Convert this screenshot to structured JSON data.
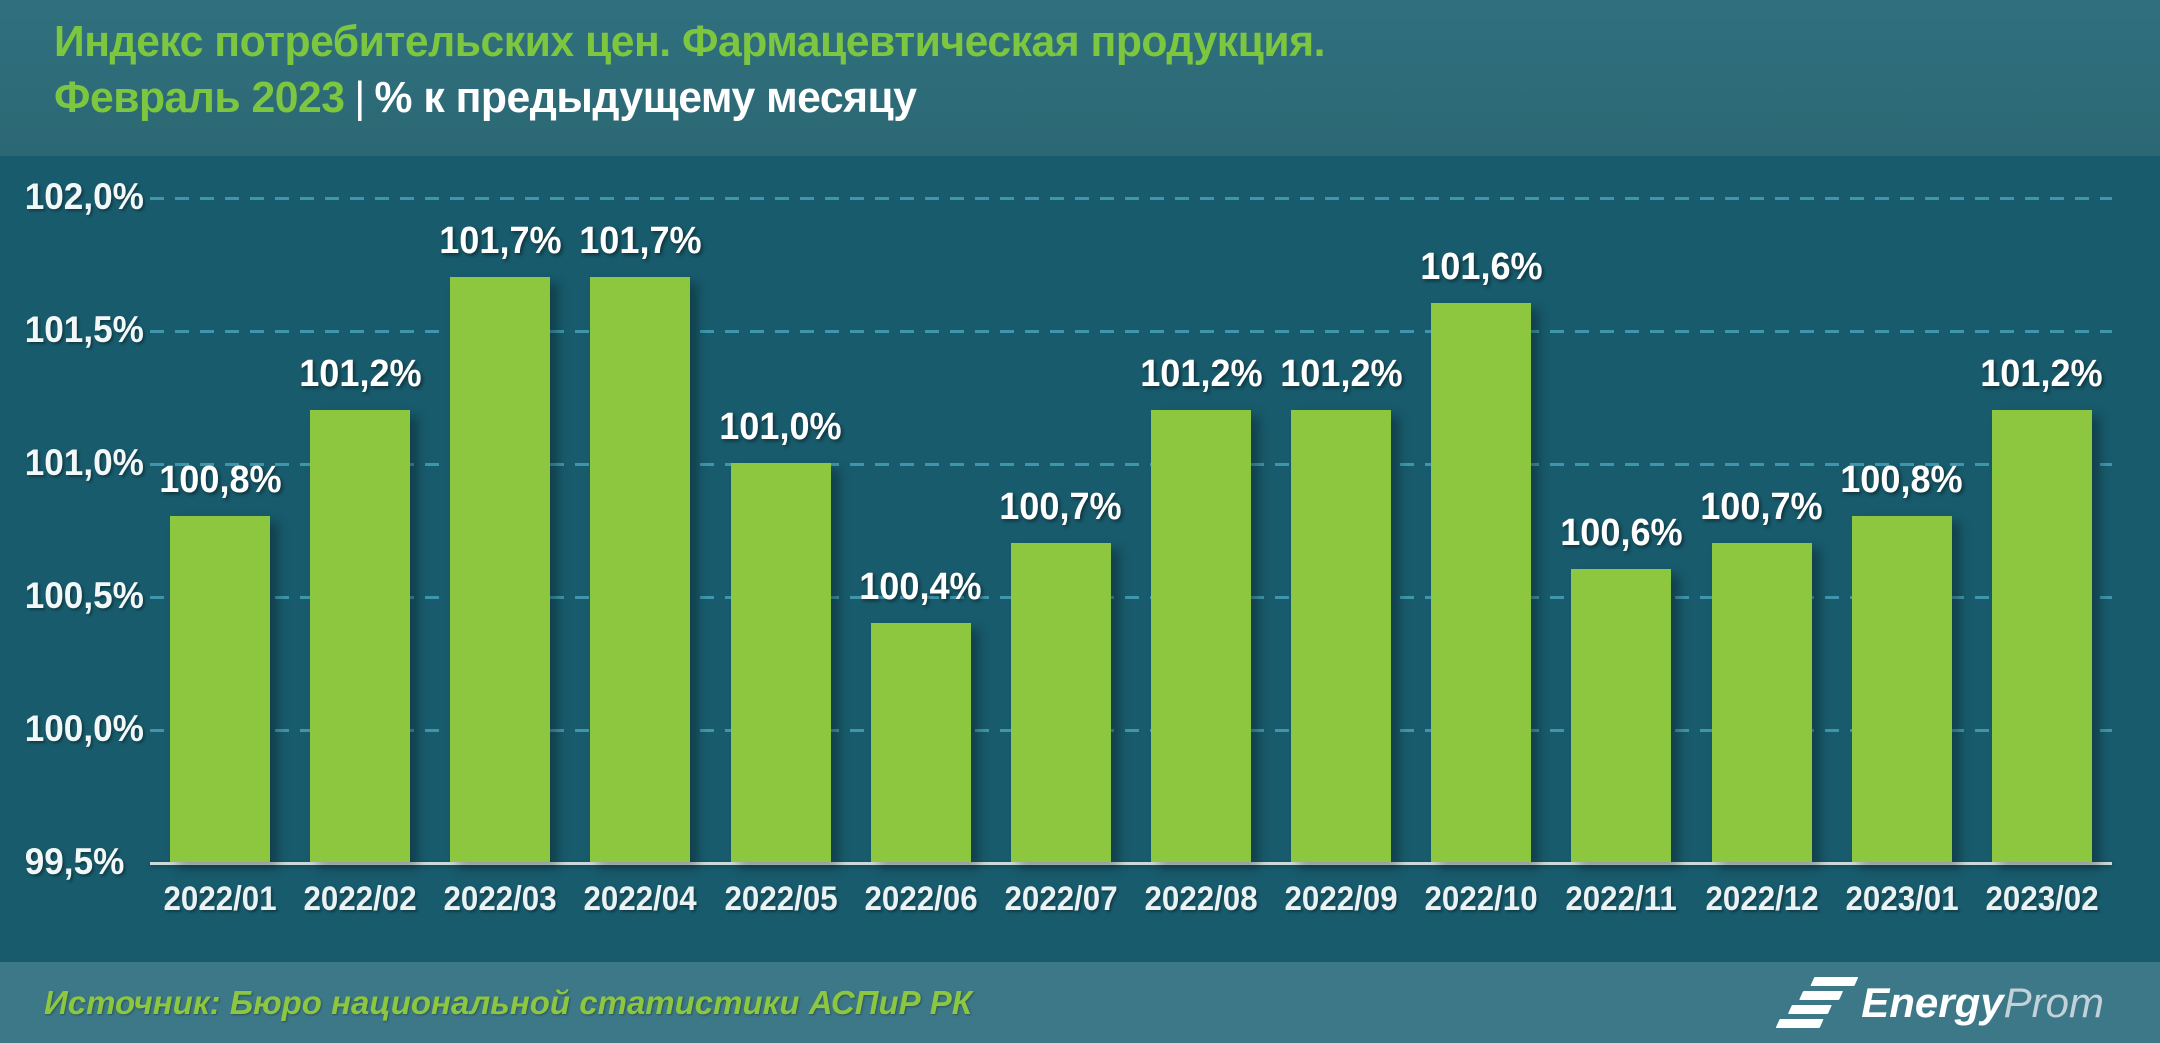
{
  "header": {
    "title": "Индекс потребительских цен. Фармацевтическая продукция.",
    "period": "Февраль 2023",
    "separator": "|",
    "units": "% к предыдущему месяцу"
  },
  "chart_data": {
    "type": "bar",
    "title": "Индекс потребительских цен. Фармацевтическая продукция. Февраль 2023, % к предыдущему месяцу",
    "categories": [
      "2022/01",
      "2022/02",
      "2022/03",
      "2022/04",
      "2022/05",
      "2022/06",
      "2022/07",
      "2022/08",
      "2022/09",
      "2022/10",
      "2022/11",
      "2022/12",
      "2023/01",
      "2023/02"
    ],
    "values": [
      100.8,
      101.2,
      101.7,
      101.7,
      101.0,
      100.4,
      100.7,
      101.2,
      101.2,
      101.6,
      100.6,
      100.7,
      100.8,
      101.2
    ],
    "value_labels": [
      "100,8%",
      "101,2%",
      "101,7%",
      "101,7%",
      "101,0%",
      "100,4%",
      "100,7%",
      "101,2%",
      "101,2%",
      "101,6%",
      "100,6%",
      "100,7%",
      "100,8%",
      "101,2%"
    ],
    "yticks": [
      {
        "label": "102,0%",
        "value": 102.0
      },
      {
        "label": "101,5%",
        "value": 101.5
      },
      {
        "label": "101,0%",
        "value": 101.0
      },
      {
        "label": "100,5%",
        "value": 100.5
      },
      {
        "label": "100,0%",
        "value": 100.0
      },
      {
        "label": "99,5%",
        "value": 99.5
      }
    ],
    "ylim": [
      99.5,
      102.16
    ],
    "xlabel": "",
    "ylabel": "",
    "grid": "horizontal-dashed",
    "legend": "none",
    "bar_color": "#8DC63F",
    "background_color": "#185B6C"
  },
  "footer": {
    "source": "Источник: Бюро национальной статистики АСПиР РК",
    "logo_energy": "Energy",
    "logo_prom": "Prom"
  }
}
